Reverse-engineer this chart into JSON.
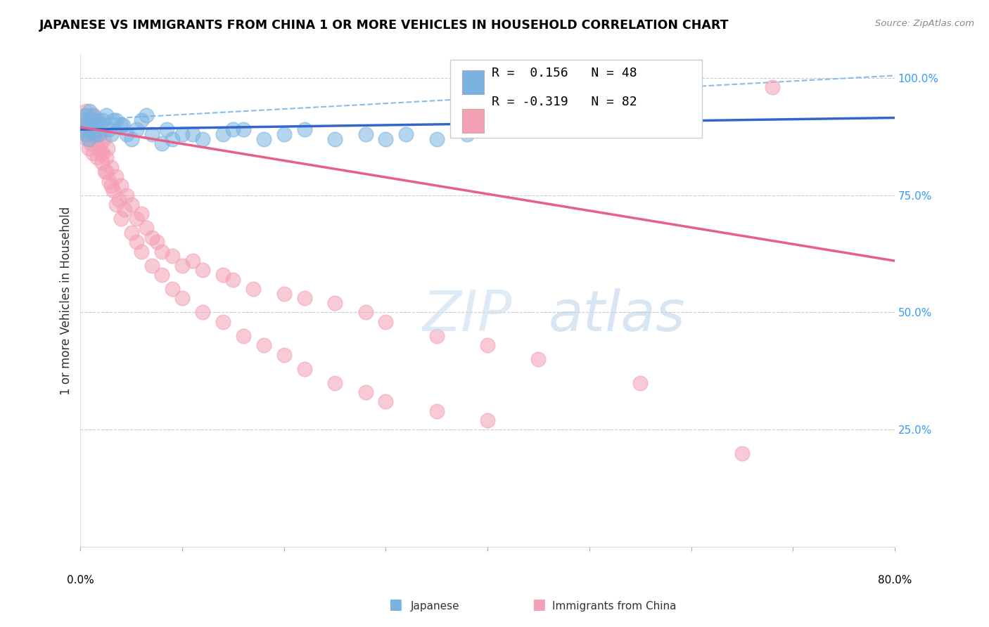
{
  "title": "JAPANESE VS IMMIGRANTS FROM CHINA 1 OR MORE VEHICLES IN HOUSEHOLD CORRELATION CHART",
  "source": "Source: ZipAtlas.com",
  "ylabel": "1 or more Vehicles in Household",
  "xlim": [
    0.0,
    80.0
  ],
  "ylim": [
    0.0,
    105.0
  ],
  "legend_R_japanese": "0.156",
  "legend_N_japanese": "48",
  "legend_R_china": "-0.319",
  "legend_N_china": "82",
  "color_japanese": "#7ab3e0",
  "color_china": "#f4a0b5",
  "color_trendline_japanese": "#3366cc",
  "color_trendline_china": "#e8608a",
  "color_dashed": "#88bbee",
  "watermark_zip": "ZIP",
  "watermark_atlas": "atlas",
  "japanese_x": [
    0.3,
    0.4,
    0.5,
    0.6,
    0.7,
    0.8,
    0.9,
    1.0,
    1.1,
    1.2,
    1.3,
    1.4,
    1.5,
    1.6,
    1.8,
    2.0,
    2.2,
    2.5,
    2.8,
    3.0,
    3.5,
    4.0,
    4.5,
    5.0,
    5.5,
    6.0,
    7.0,
    8.0,
    9.0,
    10.0,
    12.0,
    14.0,
    16.0,
    18.0,
    20.0,
    22.0,
    25.0,
    28.0,
    30.0,
    32.0,
    35.0,
    38.0,
    4.2,
    6.5,
    8.5,
    11.0,
    15.0,
    3.2
  ],
  "japanese_y": [
    91,
    89,
    92,
    88,
    90,
    87,
    93,
    91,
    89,
    92,
    90,
    88,
    91,
    89,
    88,
    90,
    91,
    92,
    89,
    88,
    91,
    90,
    88,
    87,
    89,
    91,
    88,
    86,
    87,
    88,
    87,
    88,
    89,
    87,
    88,
    89,
    87,
    88,
    87,
    88,
    87,
    88,
    90,
    92,
    89,
    88,
    89,
    91
  ],
  "china_x": [
    0.3,
    0.4,
    0.5,
    0.5,
    0.6,
    0.7,
    0.8,
    0.9,
    1.0,
    1.0,
    1.1,
    1.2,
    1.3,
    1.4,
    1.5,
    1.6,
    1.7,
    1.8,
    1.9,
    2.0,
    2.1,
    2.2,
    2.3,
    2.4,
    2.5,
    2.7,
    2.8,
    3.0,
    3.2,
    3.5,
    3.8,
    4.0,
    4.3,
    4.5,
    5.0,
    5.5,
    6.0,
    6.5,
    7.0,
    7.5,
    8.0,
    9.0,
    10.0,
    11.0,
    12.0,
    14.0,
    15.0,
    17.0,
    20.0,
    22.0,
    25.0,
    28.0,
    30.0,
    35.0,
    40.0,
    45.0,
    55.0,
    65.0,
    2.0,
    2.5,
    3.0,
    3.5,
    4.0,
    5.0,
    5.5,
    6.0,
    7.0,
    8.0,
    9.0,
    10.0,
    12.0,
    14.0,
    16.0,
    18.0,
    20.0,
    22.0,
    25.0,
    28.0,
    30.0,
    35.0,
    40.0,
    68.0
  ],
  "china_y": [
    92,
    90,
    88,
    93,
    87,
    91,
    85,
    89,
    90,
    86,
    88,
    84,
    92,
    87,
    89,
    83,
    91,
    85,
    88,
    86,
    82,
    84,
    87,
    80,
    83,
    85,
    78,
    81,
    76,
    79,
    74,
    77,
    72,
    75,
    73,
    70,
    71,
    68,
    66,
    65,
    63,
    62,
    60,
    61,
    59,
    58,
    57,
    55,
    54,
    53,
    52,
    50,
    48,
    45,
    43,
    40,
    35,
    20,
    84,
    80,
    77,
    73,
    70,
    67,
    65,
    63,
    60,
    58,
    55,
    53,
    50,
    48,
    45,
    43,
    41,
    38,
    35,
    33,
    31,
    29,
    27,
    98
  ],
  "trendline_jap_x0": 0,
  "trendline_jap_y0": 89.0,
  "trendline_jap_x1": 80,
  "trendline_jap_y1": 91.5,
  "trendline_china_x0": 0,
  "trendline_china_y0": 89.5,
  "trendline_china_x1": 80,
  "trendline_china_y1": 61.0,
  "dashed_x0": 0,
  "dashed_y0": 91.0,
  "dashed_x1": 80,
  "dashed_y1": 100.5
}
